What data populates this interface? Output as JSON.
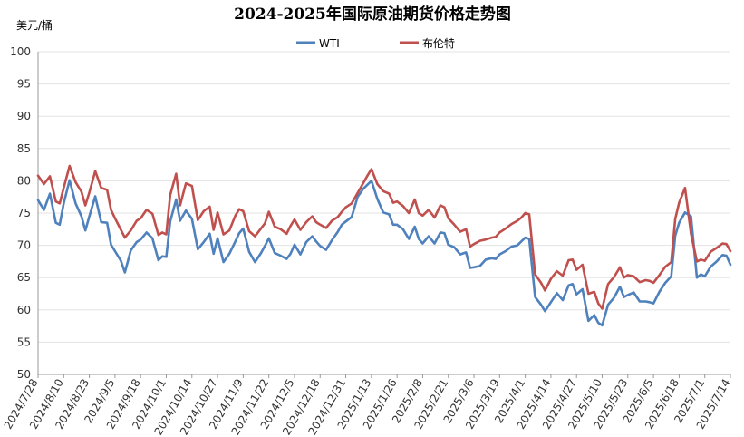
{
  "chart_data": {
    "type": "line",
    "title": "2024-2025年国际原油期货价格走势图",
    "unit_label": "美元/桶",
    "ylim": [
      50,
      100
    ],
    "y_ticks": [
      50,
      55,
      60,
      65,
      70,
      75,
      80,
      85,
      90,
      95,
      100
    ],
    "x_tick_labels": [
      "2024/7/28",
      "2024/8/10",
      "2024/8/23",
      "2024/9/5",
      "2024/9/18",
      "2024/10/1",
      "2024/10/14",
      "2024/10/27",
      "2024/11/9",
      "2024/11/22",
      "2024/12/5",
      "2024/12/18",
      "2024/12/31",
      "2025/1/13",
      "2025/1/26",
      "2025/2/8",
      "2025/2/21",
      "2025/3/6",
      "2025/3/19",
      "2025/4/1",
      "2025/4/14",
      "2025/4/27",
      "2025/5/10",
      "2025/5/23",
      "2025/6/5",
      "2025/6/18",
      "2025/7/1",
      "2025/7/14"
    ],
    "grid": "horizontal",
    "legend_position": "top",
    "x": [
      "2024/7/28",
      "2024/7/31",
      "2024/8/3",
      "2024/8/6",
      "2024/8/8",
      "2024/8/10",
      "2024/8/13",
      "2024/8/16",
      "2024/8/19",
      "2024/8/21",
      "2024/8/23",
      "2024/8/26",
      "2024/8/29",
      "2024/9/1",
      "2024/9/3",
      "2024/9/5",
      "2024/9/8",
      "2024/9/10",
      "2024/9/13",
      "2024/9/16",
      "2024/9/18",
      "2024/9/21",
      "2024/9/24",
      "2024/9/27",
      "2024/9/29",
      "2024/10/1",
      "2024/10/3",
      "2024/10/6",
      "2024/10/8",
      "2024/10/11",
      "2024/10/14",
      "2024/10/17",
      "2024/10/20",
      "2024/10/23",
      "2024/10/25",
      "2024/10/27",
      "2024/10/30",
      "2024/11/2",
      "2024/11/5",
      "2024/11/7",
      "2024/11/9",
      "2024/11/12",
      "2024/11/15",
      "2024/11/18",
      "2024/11/20",
      "2024/11/22",
      "2024/11/25",
      "2024/11/28",
      "2024/12/1",
      "2024/12/3",
      "2024/12/5",
      "2024/12/8",
      "2024/12/11",
      "2024/12/14",
      "2024/12/16",
      "2024/12/18",
      "2024/12/21",
      "2024/12/24",
      "2024/12/27",
      "2024/12/29",
      "2024/12/31",
      "2025/1/3",
      "2025/1/6",
      "2025/1/9",
      "2025/1/11",
      "2025/1/13",
      "2025/1/16",
      "2025/1/19",
      "2025/1/22",
      "2025/1/24",
      "2025/1/26",
      "2025/1/29",
      "2025/2/1",
      "2025/2/4",
      "2025/2/6",
      "2025/2/8",
      "2025/2/11",
      "2025/2/14",
      "2025/2/17",
      "2025/2/19",
      "2025/2/21",
      "2025/2/24",
      "2025/2/27",
      "2025/3/2",
      "2025/3/4",
      "2025/3/6",
      "2025/3/9",
      "2025/3/12",
      "2025/3/15",
      "2025/3/17",
      "2025/3/19",
      "2025/3/22",
      "2025/3/25",
      "2025/3/28",
      "2025/3/30",
      "2025/4/1",
      "2025/4/3",
      "2025/4/6",
      "2025/4/9",
      "2025/4/11",
      "2025/4/14",
      "2025/4/17",
      "2025/4/20",
      "2025/4/23",
      "2025/4/25",
      "2025/4/27",
      "2025/4/30",
      "2025/5/3",
      "2025/5/6",
      "2025/5/8",
      "2025/5/10",
      "2025/5/13",
      "2025/5/16",
      "2025/5/19",
      "2025/5/21",
      "2025/5/23",
      "2025/5/26",
      "2025/5/29",
      "2025/6/1",
      "2025/6/3",
      "2025/6/5",
      "2025/6/8",
      "2025/6/11",
      "2025/6/14",
      "2025/6/16",
      "2025/6/18",
      "2025/6/21",
      "2025/6/24",
      "2025/6/27",
      "2025/6/29",
      "2025/7/1",
      "2025/7/4",
      "2025/7/7",
      "2025/7/10",
      "2025/7/12",
      "2025/7/14"
    ],
    "series": [
      {
        "name": "WTI",
        "color": "#4f81bd",
        "values": [
          77.0,
          75.5,
          78.0,
          73.5,
          73.2,
          76.5,
          80.1,
          76.5,
          74.5,
          72.3,
          74.5,
          77.6,
          73.6,
          73.5,
          70.1,
          69.1,
          67.6,
          65.8,
          69.2,
          70.5,
          70.9,
          72.0,
          71.1,
          67.7,
          68.3,
          68.2,
          73.7,
          77.1,
          73.8,
          75.4,
          74.1,
          69.4,
          70.5,
          71.8,
          68.7,
          71.1,
          67.4,
          68.7,
          70.6,
          71.9,
          72.6,
          69.0,
          67.4,
          68.8,
          69.9,
          71.1,
          68.8,
          68.4,
          67.9,
          68.7,
          70.1,
          68.6,
          70.5,
          71.4,
          70.6,
          69.9,
          69.3,
          70.8,
          72.1,
          73.2,
          73.7,
          74.4,
          77.5,
          78.8,
          79.4,
          80.0,
          77.2,
          75.1,
          74.8,
          73.2,
          73.2,
          72.5,
          71.0,
          72.9,
          71.0,
          70.3,
          71.4,
          70.3,
          72.0,
          71.9,
          70.1,
          69.7,
          68.6,
          68.9,
          66.5,
          66.6,
          66.8,
          67.8,
          68.0,
          67.9,
          68.6,
          69.1,
          69.8,
          70.0,
          70.6,
          71.2,
          71.0,
          62.0,
          60.8,
          59.8,
          61.2,
          62.6,
          61.5,
          63.8,
          64.0,
          62.4,
          63.2,
          58.3,
          59.2,
          58.0,
          57.6,
          60.8,
          61.9,
          63.6,
          62.0,
          62.3,
          62.7,
          61.3,
          61.3,
          61.2,
          61.0,
          62.8,
          64.2,
          65.2,
          71.5,
          73.5,
          75.1,
          74.5,
          65.0,
          65.5,
          65.2,
          66.7,
          67.5,
          68.5,
          68.4,
          67.0
        ]
      },
      {
        "name": "布伦特",
        "color": "#c0504d",
        "values": [
          80.8,
          79.5,
          80.7,
          76.8,
          76.5,
          78.9,
          82.3,
          79.8,
          78.3,
          76.2,
          78.2,
          81.5,
          78.9,
          78.6,
          75.5,
          74.2,
          72.4,
          71.2,
          72.3,
          73.8,
          74.2,
          75.5,
          74.9,
          71.6,
          72.0,
          71.7,
          77.8,
          81.1,
          76.2,
          79.6,
          79.2,
          73.9,
          75.3,
          76.0,
          72.4,
          75.1,
          71.7,
          72.3,
          74.6,
          75.6,
          75.3,
          72.2,
          71.4,
          72.6,
          73.4,
          75.2,
          72.9,
          72.5,
          71.8,
          73.0,
          74.0,
          72.4,
          73.6,
          74.5,
          73.6,
          73.2,
          72.7,
          73.8,
          74.4,
          75.2,
          75.9,
          76.5,
          78.1,
          79.7,
          80.8,
          81.8,
          79.5,
          78.4,
          78.0,
          76.6,
          76.8,
          76.1,
          75.0,
          77.1,
          75.0,
          74.6,
          75.5,
          74.3,
          76.2,
          75.9,
          74.2,
          73.2,
          72.1,
          72.5,
          69.8,
          70.2,
          70.7,
          70.9,
          71.2,
          71.3,
          72.0,
          72.6,
          73.3,
          73.8,
          74.3,
          75.0,
          74.8,
          65.5,
          64.2,
          63.0,
          64.8,
          66.0,
          65.3,
          67.7,
          67.8,
          66.2,
          67.0,
          62.5,
          62.8,
          61.0,
          60.2,
          64.0,
          65.1,
          66.6,
          65.0,
          65.4,
          65.2,
          64.3,
          64.6,
          64.5,
          64.2,
          65.4,
          66.7,
          67.4,
          74.1,
          76.6,
          78.9,
          71.8,
          67.5,
          67.8,
          67.6,
          69.0,
          69.6,
          70.3,
          70.2,
          69.1
        ]
      }
    ]
  }
}
